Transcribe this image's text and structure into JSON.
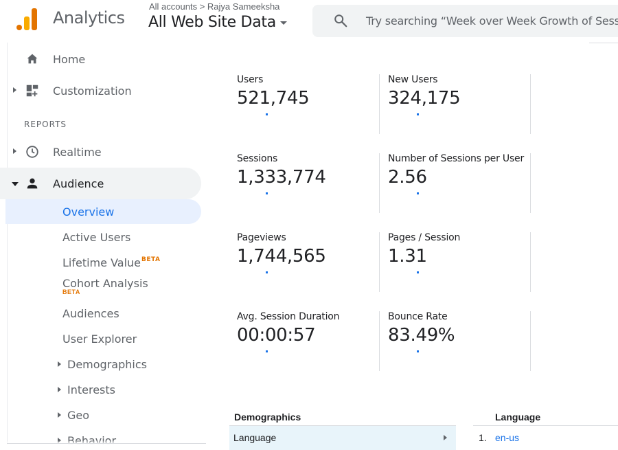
{
  "header": {
    "app_title": "Analytics",
    "breadcrumb": "All accounts > Rajya Sameeksha",
    "property": "All Web Site Data",
    "search_placeholder": "Try searching “Week over Week Growth of Sess",
    "brand_colors": {
      "logo_dark": "#e37400",
      "logo_light": "#f9ab00"
    }
  },
  "sidebar": {
    "home": "Home",
    "customization": "Customization",
    "reports_label": "REPORTS",
    "realtime": "Realtime",
    "audience": "Audience",
    "audience_items": {
      "overview": "Overview",
      "active_users": "Active Users",
      "lifetime_value": "Lifetime Value",
      "lifetime_value_badge": "BETA",
      "cohort_analysis": "Cohort Analysis",
      "cohort_analysis_badge": "BETA",
      "audiences": "Audiences",
      "user_explorer": "User Explorer",
      "demographics": "Demographics",
      "interests": "Interests",
      "geo": "Geo",
      "behavior": "Behavior"
    },
    "active_color": "#1a73e8"
  },
  "metrics": [
    {
      "name": "Users",
      "value": "521,745"
    },
    {
      "name": "New Users",
      "value": "324,175"
    },
    {
      "name": "Sessions",
      "value": "1,333,774"
    },
    {
      "name": "Number of Sessions per User",
      "value": "2.56"
    },
    {
      "name": "Pageviews",
      "value": "1,744,565"
    },
    {
      "name": "Pages / Session",
      "value": "1.31"
    },
    {
      "name": "Avg. Session Duration",
      "value": "00:00:57"
    },
    {
      "name": "Bounce Rate",
      "value": "83.49%"
    }
  ],
  "demographics": {
    "title": "Demographics",
    "selected_dimension": "Language"
  },
  "language_table": {
    "title": "Language",
    "rows": [
      {
        "rank": "1.",
        "value": "en-us"
      }
    ]
  }
}
